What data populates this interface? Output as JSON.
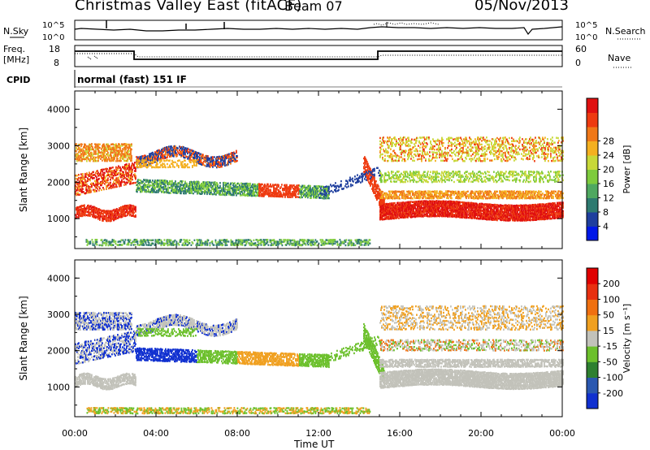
{
  "header": {
    "title": "Christmas Valley East (fitACF)",
    "beam": "Beam 07",
    "date": "05/Nov/2013"
  },
  "top_panels": {
    "nsky_label": "N.Sky",
    "nsky_ticks": [
      "10^5",
      "10^0"
    ],
    "nsearch_label": "N.Search",
    "nsearch_ticks": [
      "10^5",
      "10^0"
    ],
    "freq_label_1": "Freq.",
    "freq_label_2": "[MHz]",
    "freq_ticks": [
      "18",
      "8"
    ],
    "nave_label": "Nave",
    "nave_ticks": [
      "60",
      "0"
    ],
    "cpid_label": "CPID",
    "cpid_value": "normal (fast) 151 IF"
  },
  "chart_data": [
    {
      "type": "heatmap",
      "name": "power-panel",
      "ylabel": "Slant Range [km]",
      "yticks": [
        "1000",
        "2000",
        "3000",
        "4000"
      ],
      "ylim": [
        180,
        4500
      ],
      "xlim": [
        0,
        24
      ],
      "xticks_hours": [
        0,
        4,
        8,
        12,
        16,
        20,
        24
      ],
      "colorbar": {
        "label": "Power [dB]",
        "ticks": [
          "4",
          "8",
          "12",
          "16",
          "20",
          "24",
          "28"
        ],
        "colors": [
          "#0018e8",
          "#1f3f9e",
          "#2e7a70",
          "#4fa860",
          "#7ecb3d",
          "#c8d838",
          "#f4b020",
          "#f07818",
          "#ee3a10",
          "#e01010"
        ]
      }
    },
    {
      "type": "heatmap",
      "name": "velocity-panel",
      "ylabel": "Slant Range [km]",
      "yticks": [
        "1000",
        "2000",
        "3000",
        "4000"
      ],
      "ylim": [
        180,
        4500
      ],
      "xlim": [
        0,
        24
      ],
      "xticks_hours": [
        0,
        4,
        8,
        12,
        16,
        20,
        24
      ],
      "colorbar": {
        "label": "Velocity [m s⁻¹]",
        "ticks": [
          "200",
          "100",
          "50",
          "15",
          "-15",
          "-50",
          "-100",
          "-200"
        ],
        "colors": [
          "#1030d0",
          "#2a58b0",
          "#2e8030",
          "#6cc02c",
          "#c2c2ba",
          "#f0a020",
          "#f07010",
          "#e83010",
          "#e00000"
        ]
      }
    }
  ],
  "xaxis": {
    "ticks": [
      "00:00",
      "04:00",
      "08:00",
      "12:00",
      "16:00",
      "20:00",
      "00:00"
    ],
    "label": "Time UT"
  }
}
